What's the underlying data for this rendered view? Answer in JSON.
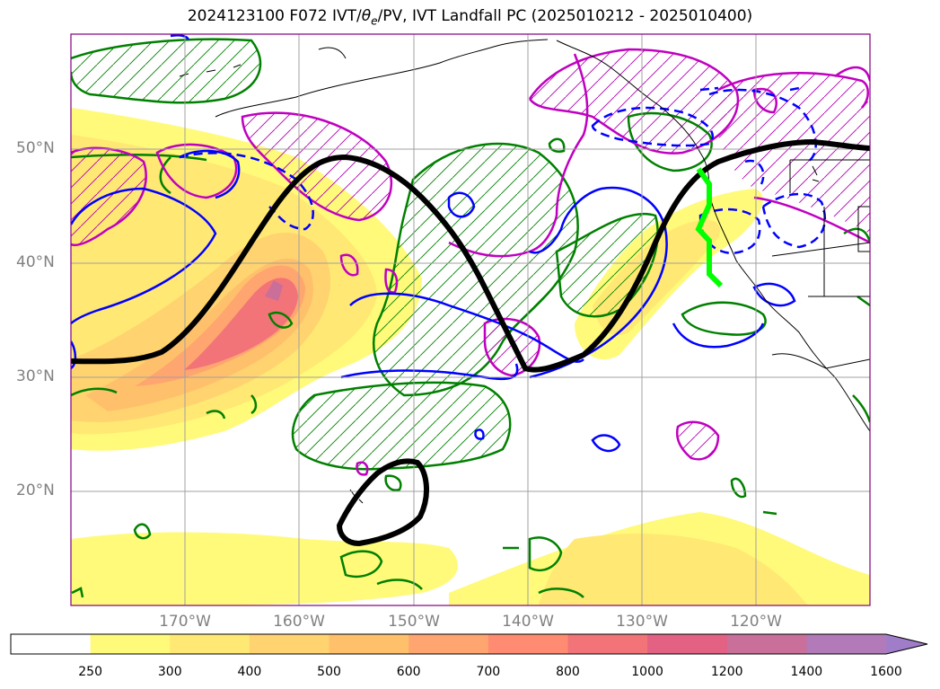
{
  "title": "2024123100 F072 IVT/θe/PV, IVT Landfall PC (2025010212 - 2025010400)",
  "title_parts": {
    "pre": "2024123100 F072 IVT/",
    "theta": "θ",
    "sub": "e",
    "post": "/PV, IVT Landfall PC (2025010212 - 2025010400)"
  },
  "map": {
    "lat_labels": [
      "50°N",
      "40°N",
      "30°N",
      "20°N"
    ],
    "lon_labels": [
      "170°W",
      "160°W",
      "150°W",
      "140°W",
      "130°W",
      "120°W"
    ],
    "lat_values": [
      50,
      40,
      30,
      20
    ],
    "lon_values": [
      -170,
      -160,
      -150,
      -140,
      -130,
      -120
    ],
    "extent": {
      "lon_min": -180,
      "lon_max": -110,
      "lat_min": 10,
      "lat_max": 60
    },
    "grid": true,
    "colors": {
      "trough_ridge_axis": "#000000",
      "landfall_line": "#00ff00",
      "pv_contour": "#0000ff",
      "theta_e_contour_green": "#008000",
      "theta_e_contour_magenta": "#c000c0"
    }
  },
  "colorbar": {
    "ticks": [
      "250",
      "300",
      "400",
      "500",
      "600",
      "700",
      "800",
      "1000",
      "1200",
      "1400",
      "1600"
    ],
    "colors": [
      "#ffffff",
      "#fffa7a",
      "#ffe873",
      "#ffd36f",
      "#ffc06c",
      "#ffa56f",
      "#ff8c72",
      "#f27378",
      "#e36182",
      "#c96f9a",
      "#b27ab8",
      "#a07dc8"
    ],
    "extend": "max"
  }
}
